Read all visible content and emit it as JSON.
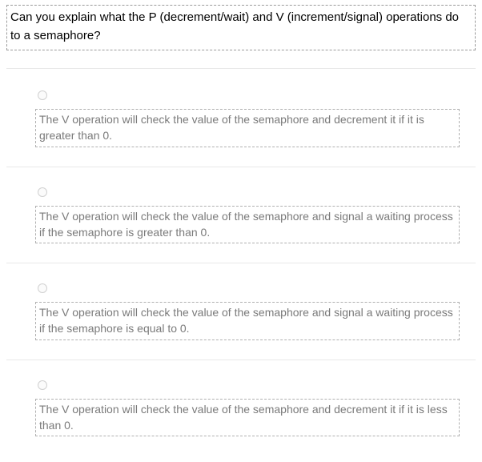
{
  "question": {
    "text": "Can you explain what the P (decrement/wait) and V (increment/signal) operations do to a semaphore?"
  },
  "options": [
    {
      "text": "The V operation will check the value of the semaphore and decrement it if it is greater than 0."
    },
    {
      "text": "The V operation will check the value of the semaphore and signal a waiting process if the semaphore is greater than 0."
    },
    {
      "text": "The V operation will check the value of the semaphore and signal a waiting process if the semaphore is equal to 0."
    },
    {
      "text": "The V operation will check the value of the semaphore and decrement it if it is less than 0."
    }
  ],
  "colors": {
    "question_text": "#000000",
    "option_text": "#7a7a7a",
    "dash_border": "#9a9a9a",
    "option_border": "#b0b0b0",
    "divider": "#e8e8e8",
    "radio_border": "#d0d0d0",
    "background": "#ffffff"
  },
  "typography": {
    "question_fontsize": 15,
    "option_fontsize": 14,
    "font_family": "Arial"
  }
}
